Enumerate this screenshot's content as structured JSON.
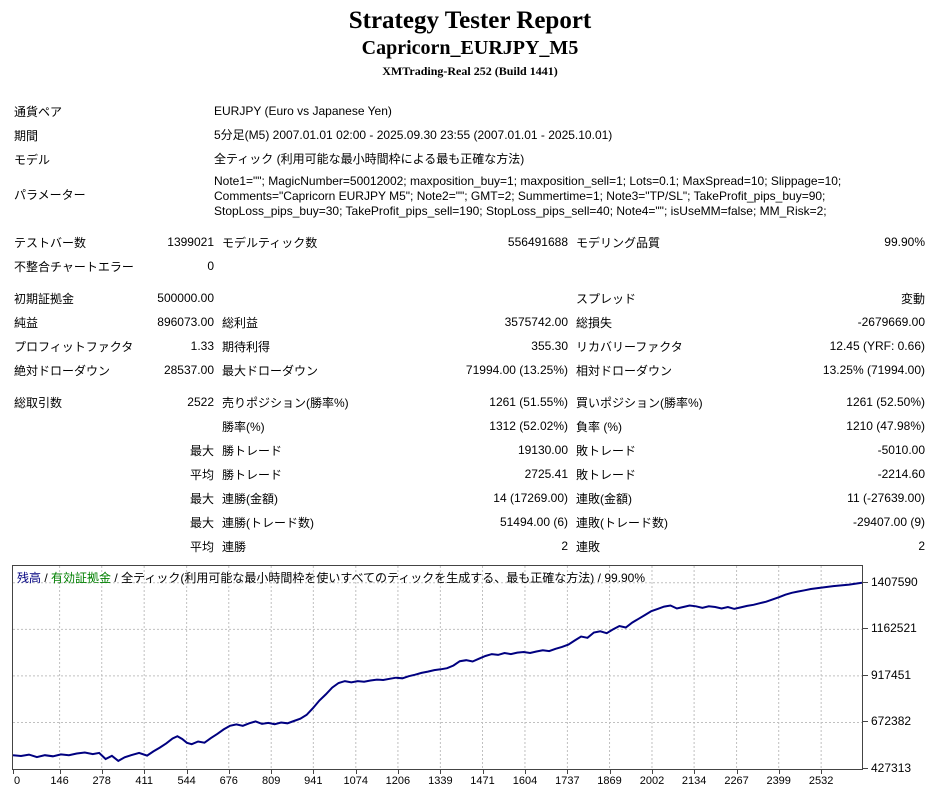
{
  "header": {
    "title": "Strategy Tester Report",
    "subtitle": "Capricorn_EURJPY_M5",
    "server": "XMTrading-Real 252 (Build 1441)"
  },
  "info": {
    "rows": [
      {
        "label": "通貨ペア",
        "lines": [
          "EURJPY (Euro vs Japanese Yen)"
        ]
      },
      {
        "label": "期間",
        "lines": [
          "5分足(M5) 2007.01.01 02:00 - 2025.09.30 23:55 (2007.01.01 - 2025.10.01)"
        ]
      },
      {
        "label": "モデル",
        "lines": [
          "全ティック (利用可能な最小時間枠による最も正確な方法)"
        ]
      },
      {
        "label": "パラメーター",
        "lines": [
          "Note1=\"\"; MagicNumber=50012002; maxposition_buy=1; maxposition_sell=1; Lots=0.1; MaxSpread=10; Slippage=10;",
          "Comments=\"Capricorn EURJPY M5\"; Note2=\"\"; GMT=2; Summertime=1; Note3=\"TP/SL\"; TakeProfit_pips_buy=90;",
          "StopLoss_pips_buy=30; TakeProfit_pips_sell=190; StopLoss_pips_sell=40; Note4=\"\"; isUseMM=false; MM_Risk=2;"
        ]
      }
    ]
  },
  "stats": {
    "groups": [
      {
        "rows": [
          [
            "テストバー数",
            "1399021",
            "モデルティック数",
            "556491688",
            "モデリング品質",
            "99.90%"
          ],
          [
            "不整合チャートエラー",
            "0",
            "",
            "",
            "",
            ""
          ]
        ]
      },
      {
        "rows": [
          [
            "初期証拠金",
            "500000.00",
            "",
            "",
            "スプレッド",
            "変動"
          ],
          [
            "純益",
            "896073.00",
            "総利益",
            "3575742.00",
            "総損失",
            "-2679669.00"
          ],
          [
            "プロフィットファクタ",
            "1.33",
            "期待利得",
            "355.30",
            "リカバリーファクタ",
            "12.45 (YRF: 0.66)"
          ],
          [
            "絶対ドローダウン",
            "28537.00",
            "最大ドローダウン",
            "71994.00 (13.25%)",
            "相対ドローダウン",
            "13.25% (71994.00)"
          ]
        ]
      },
      {
        "rows": [
          [
            "総取引数",
            "2522",
            "売りポジション(勝率%)",
            "1261 (51.55%)",
            "買いポジション(勝率%)",
            "1261 (52.50%)"
          ],
          [
            "",
            "",
            "勝率(%)",
            "1312 (52.02%)",
            "負率 (%)",
            "1210 (47.98%)"
          ],
          [
            "",
            "最大",
            "勝トレード",
            "19130.00",
            "敗トレード",
            "-5010.00"
          ],
          [
            "",
            "平均",
            "勝トレード",
            "2725.41",
            "敗トレード",
            "-2214.60"
          ],
          [
            "",
            "最大",
            "連勝(金額)",
            "14 (17269.00)",
            "連敗(金額)",
            "11 (-27639.00)"
          ],
          [
            "",
            "最大",
            "連勝(トレード数)",
            "51494.00 (6)",
            "連敗(トレード数)",
            "-29407.00 (9)"
          ],
          [
            "",
            "平均",
            "連勝",
            "2",
            "連敗",
            "2"
          ]
        ]
      }
    ]
  },
  "chart": {
    "legend": {
      "balance_label": "残高",
      "equity_label": "有効証拠金",
      "model_label": "全ティック(利用可能な最小時間枠を使いすべてのティックを生成する、最も正確な方法)",
      "quality_label": "99.90%",
      "separator": " / ",
      "balance_color": "#000080",
      "equity_color": "#008000"
    }
  },
  "chart_data": {
    "type": "line",
    "title": "残高 / 有効証拠金 / 全ティック(利用可能な最小時間枠を使いすべてのティックを生成する、最も正確な方法) / 99.90%",
    "xlabel": "",
    "ylabel": "",
    "grid": true,
    "line_color": "#000080",
    "grid_color": "#c0c0c0",
    "x_range": [
      0,
      2660
    ],
    "y_range": [
      427313,
      1496000
    ],
    "x_ticks": [
      0,
      146,
      278,
      411,
      544,
      676,
      809,
      941,
      1074,
      1206,
      1339,
      1471,
      1604,
      1737,
      1869,
      2002,
      2134,
      2267,
      2399,
      2532
    ],
    "y_ticks": [
      1407590,
      1162521,
      917451,
      672382,
      427313
    ],
    "series": [
      {
        "name": "残高",
        "color": "#000080",
        "points": [
          [
            0,
            500000
          ],
          [
            25,
            496000
          ],
          [
            50,
            503000
          ],
          [
            75,
            490000
          ],
          [
            100,
            500000
          ],
          [
            125,
            494000
          ],
          [
            150,
            504000
          ],
          [
            175,
            500000
          ],
          [
            200,
            509000
          ],
          [
            225,
            514000
          ],
          [
            250,
            506000
          ],
          [
            270,
            512000
          ],
          [
            290,
            480000
          ],
          [
            310,
            497000
          ],
          [
            330,
            470000
          ],
          [
            350,
            489000
          ],
          [
            370,
            500000
          ],
          [
            395,
            512000
          ],
          [
            420,
            498000
          ],
          [
            440,
            520000
          ],
          [
            460,
            540000
          ],
          [
            480,
            562000
          ],
          [
            500,
            588000
          ],
          [
            515,
            600000
          ],
          [
            530,
            585000
          ],
          [
            545,
            565000
          ],
          [
            560,
            558000
          ],
          [
            580,
            572000
          ],
          [
            600,
            566000
          ],
          [
            620,
            590000
          ],
          [
            640,
            612000
          ],
          [
            660,
            636000
          ],
          [
            680,
            655000
          ],
          [
            700,
            662000
          ],
          [
            720,
            655000
          ],
          [
            740,
            668000
          ],
          [
            760,
            678000
          ],
          [
            780,
            665000
          ],
          [
            800,
            670000
          ],
          [
            820,
            663000
          ],
          [
            840,
            672000
          ],
          [
            860,
            668000
          ],
          [
            880,
            680000
          ],
          [
            900,
            692000
          ],
          [
            920,
            712000
          ],
          [
            940,
            748000
          ],
          [
            960,
            788000
          ],
          [
            980,
            820000
          ],
          [
            1000,
            856000
          ],
          [
            1020,
            880000
          ],
          [
            1040,
            890000
          ],
          [
            1060,
            884000
          ],
          [
            1080,
            890000
          ],
          [
            1100,
            887000
          ],
          [
            1120,
            893000
          ],
          [
            1140,
            898000
          ],
          [
            1160,
            896000
          ],
          [
            1180,
            902000
          ],
          [
            1200,
            908000
          ],
          [
            1220,
            905000
          ],
          [
            1240,
            916000
          ],
          [
            1260,
            924000
          ],
          [
            1280,
            933000
          ],
          [
            1300,
            940000
          ],
          [
            1320,
            948000
          ],
          [
            1340,
            952000
          ],
          [
            1360,
            958000
          ],
          [
            1380,
            972000
          ],
          [
            1400,
            995000
          ],
          [
            1420,
            1000000
          ],
          [
            1440,
            993000
          ],
          [
            1460,
            1008000
          ],
          [
            1480,
            1022000
          ],
          [
            1500,
            1032000
          ],
          [
            1520,
            1028000
          ],
          [
            1540,
            1038000
          ],
          [
            1560,
            1032000
          ],
          [
            1580,
            1040000
          ],
          [
            1600,
            1043000
          ],
          [
            1620,
            1038000
          ],
          [
            1640,
            1046000
          ],
          [
            1660,
            1052000
          ],
          [
            1680,
            1048000
          ],
          [
            1700,
            1060000
          ],
          [
            1720,
            1070000
          ],
          [
            1740,
            1082000
          ],
          [
            1760,
            1104000
          ],
          [
            1780,
            1125000
          ],
          [
            1800,
            1118000
          ],
          [
            1820,
            1146000
          ],
          [
            1840,
            1152000
          ],
          [
            1860,
            1142000
          ],
          [
            1880,
            1162000
          ],
          [
            1900,
            1180000
          ],
          [
            1920,
            1172000
          ],
          [
            1940,
            1198000
          ],
          [
            1960,
            1218000
          ],
          [
            1980,
            1238000
          ],
          [
            2000,
            1258000
          ],
          [
            2020,
            1270000
          ],
          [
            2040,
            1282000
          ],
          [
            2060,
            1288000
          ],
          [
            2080,
            1272000
          ],
          [
            2100,
            1280000
          ],
          [
            2120,
            1288000
          ],
          [
            2140,
            1284000
          ],
          [
            2160,
            1276000
          ],
          [
            2180,
            1284000
          ],
          [
            2200,
            1280000
          ],
          [
            2220,
            1272000
          ],
          [
            2240,
            1280000
          ],
          [
            2260,
            1270000
          ],
          [
            2280,
            1278000
          ],
          [
            2300,
            1286000
          ],
          [
            2320,
            1292000
          ],
          [
            2340,
            1300000
          ],
          [
            2360,
            1308000
          ],
          [
            2380,
            1320000
          ],
          [
            2400,
            1332000
          ],
          [
            2420,
            1345000
          ],
          [
            2440,
            1355000
          ],
          [
            2460,
            1362000
          ],
          [
            2480,
            1368000
          ],
          [
            2500,
            1375000
          ],
          [
            2530,
            1382000
          ],
          [
            2570,
            1390000
          ],
          [
            2620,
            1398000
          ],
          [
            2660,
            1407590
          ]
        ]
      }
    ]
  }
}
